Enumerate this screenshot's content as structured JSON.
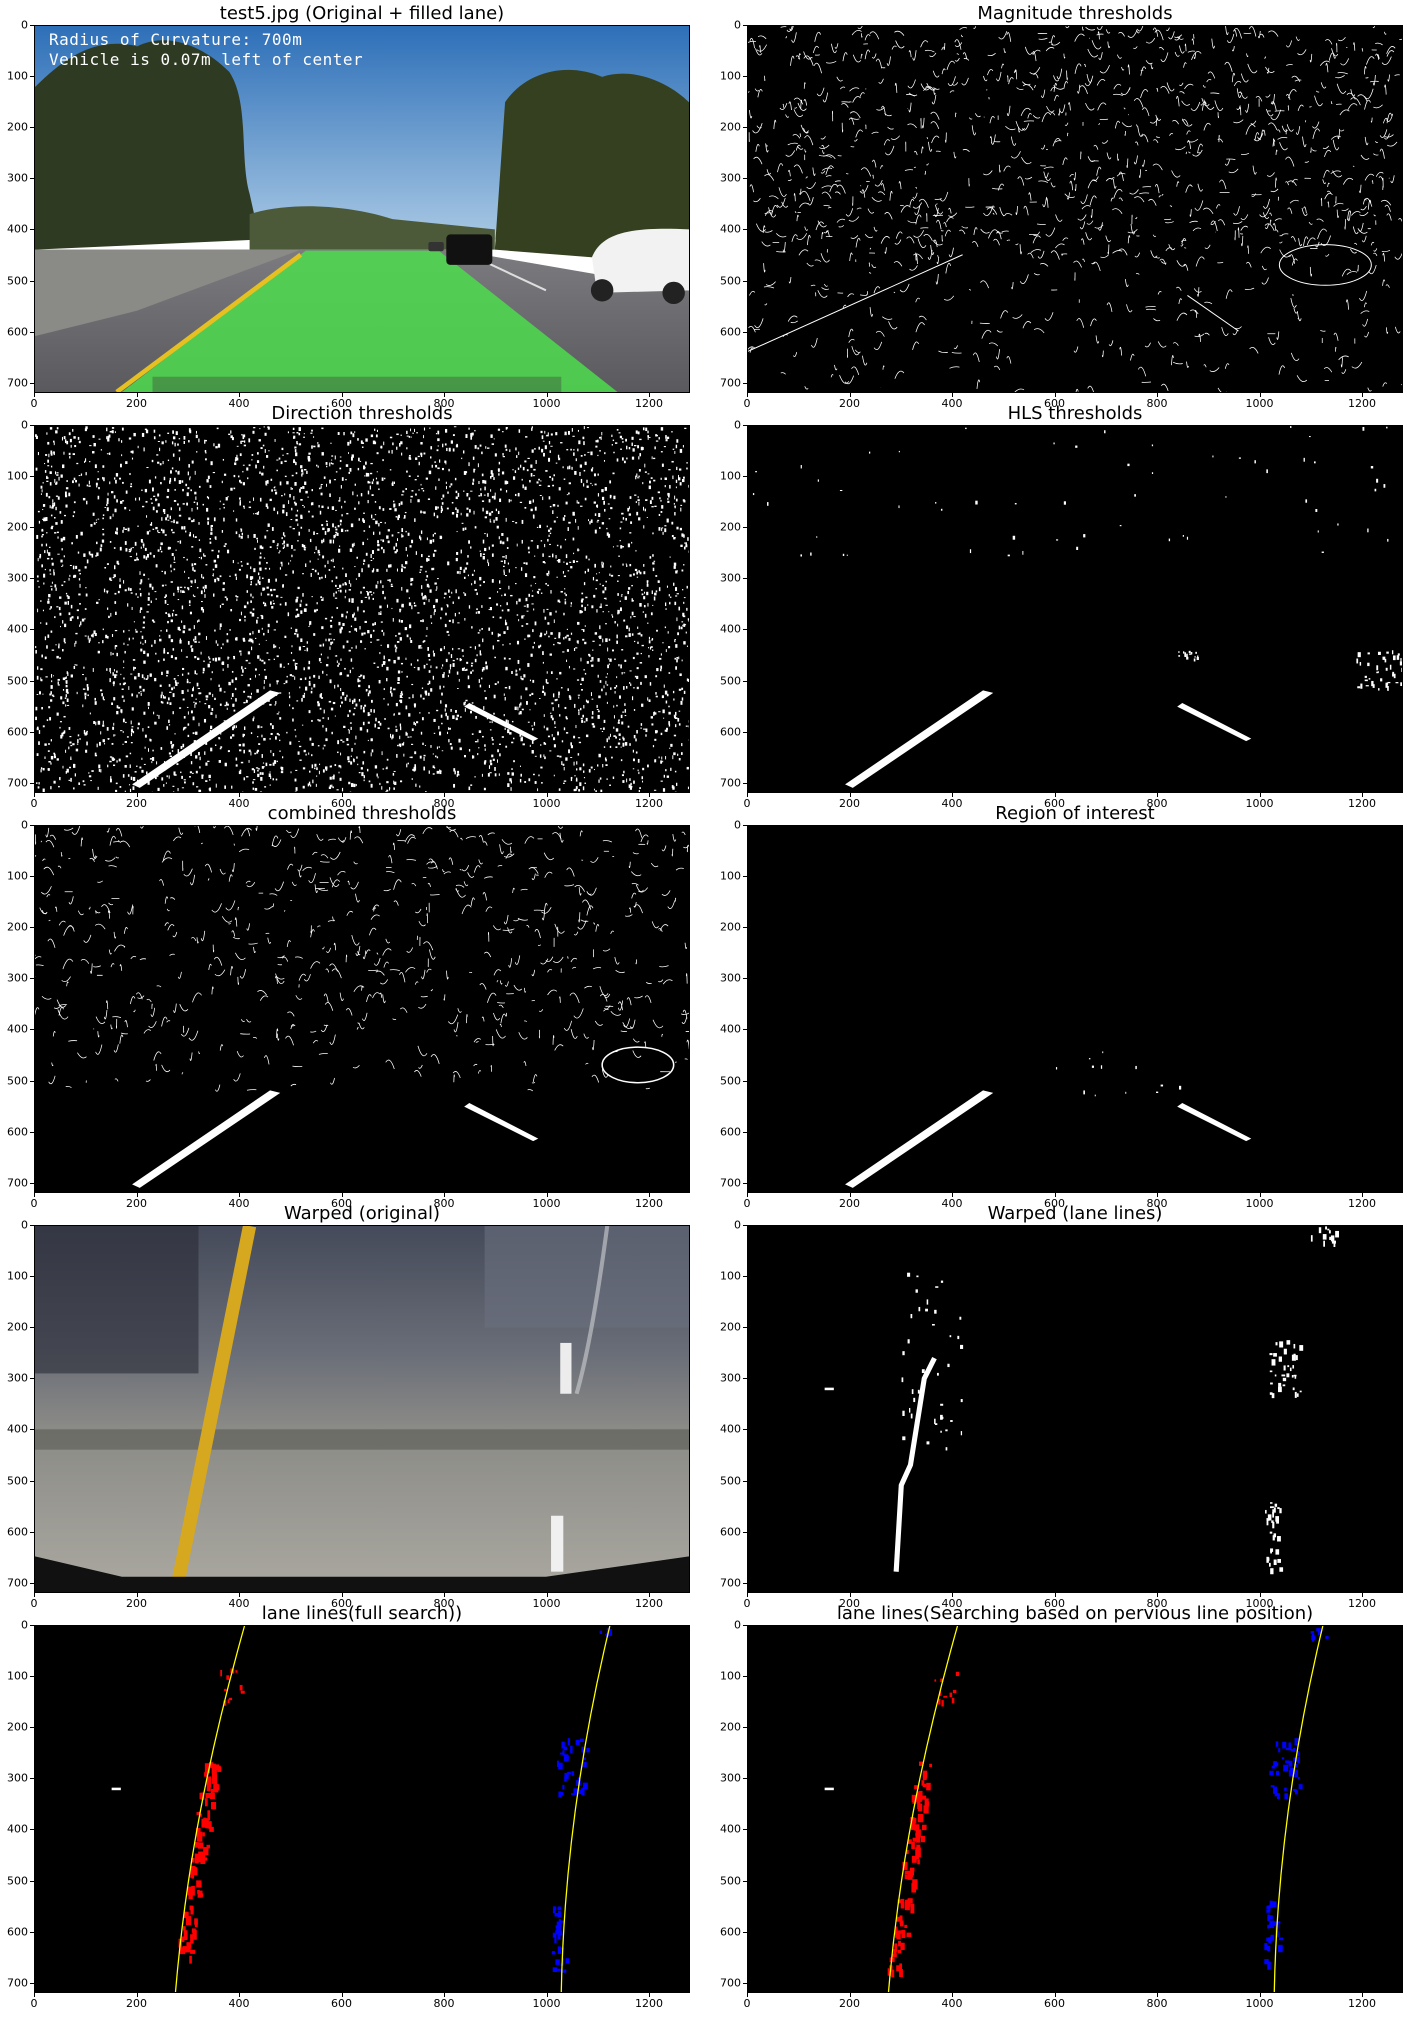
{
  "panels": [
    {
      "title": "test5.jpg (Original + filled lane)",
      "kind": "original",
      "overlay": [
        "Radius of Curvature: 700m",
        "Vehicle is 0.07m left of center"
      ]
    },
    {
      "title": "Magnitude thresholds",
      "kind": "edges-dense"
    },
    {
      "title": "Direction thresholds",
      "kind": "noise"
    },
    {
      "title": "HLS thresholds",
      "kind": "hls"
    },
    {
      "title": "combined thresholds",
      "kind": "combined"
    },
    {
      "title": "Region of interest",
      "kind": "roi"
    },
    {
      "title": "Warped (original)",
      "kind": "warped-orig"
    },
    {
      "title": "Warped (lane lines)",
      "kind": "warped-lines"
    },
    {
      "title": "lane lines(full search))",
      "kind": "fit"
    },
    {
      "title": "lane lines(Searching based on pervious line position)",
      "kind": "fit"
    }
  ],
  "axes": {
    "xticks": [
      "0",
      "200",
      "400",
      "600",
      "800",
      "1000",
      "1200"
    ],
    "yticks": [
      "0",
      "100",
      "200",
      "300",
      "400",
      "500",
      "600",
      "700"
    ],
    "xrange": [
      0,
      1280
    ],
    "yrange": [
      0,
      720
    ]
  },
  "colors": {
    "lane_fill": "#4cdc4c",
    "left_pixels": "#ff0000",
    "right_pixels": "#0000ff",
    "fit_line": "#ffff00"
  }
}
